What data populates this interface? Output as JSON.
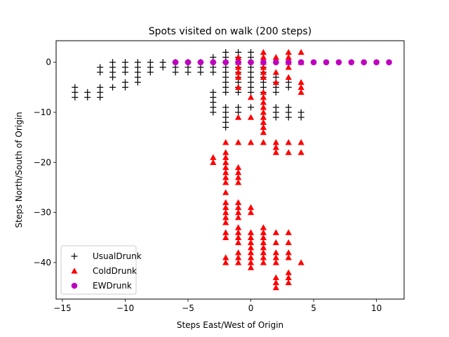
{
  "chart_data": {
    "type": "scatter",
    "title": "Spots visited on walk (200 steps)",
    "xlabel": "Steps East/West of Origin",
    "ylabel": "Steps North/South of Origin",
    "xlim": [
      -15.5,
      12.2
    ],
    "ylim": [
      -47.3,
      4.3
    ],
    "xticks": [
      -15,
      -10,
      -5,
      0,
      5,
      10
    ],
    "yticks": [
      0,
      -10,
      -20,
      -30,
      -40
    ],
    "grid": false,
    "legend": "lower-left",
    "series": [
      {
        "name": "UsualDrunk",
        "marker": "plus",
        "color": "#000000",
        "points": [
          [
            -14,
            -5
          ],
          [
            -14,
            -6
          ],
          [
            -14,
            -7
          ],
          [
            -13,
            -6
          ],
          [
            -13,
            -7
          ],
          [
            -12,
            -5
          ],
          [
            -12,
            -6
          ],
          [
            -12,
            -7
          ],
          [
            -12,
            -1
          ],
          [
            -12,
            -2
          ],
          [
            -11,
            0
          ],
          [
            -11,
            -1
          ],
          [
            -11,
            -2
          ],
          [
            -11,
            -3
          ],
          [
            -11,
            -5
          ],
          [
            -10,
            0
          ],
          [
            -10,
            -1
          ],
          [
            -10,
            -2
          ],
          [
            -10,
            -4
          ],
          [
            -10,
            -5
          ],
          [
            -9,
            0
          ],
          [
            -9,
            -1
          ],
          [
            -9,
            -2
          ],
          [
            -9,
            -3
          ],
          [
            -9,
            -4
          ],
          [
            -8,
            0
          ],
          [
            -8,
            -1
          ],
          [
            -8,
            -2
          ],
          [
            -7,
            0
          ],
          [
            -7,
            -1
          ],
          [
            -6,
            0
          ],
          [
            -6,
            -1
          ],
          [
            -6,
            -2
          ],
          [
            -5,
            0
          ],
          [
            -5,
            -1
          ],
          [
            -5,
            -2
          ],
          [
            -4,
            0
          ],
          [
            -4,
            -1
          ],
          [
            -4,
            -2
          ],
          [
            -3,
            0
          ],
          [
            -3,
            -1
          ],
          [
            -3,
            -2
          ],
          [
            -3,
            1
          ],
          [
            -3,
            -6
          ],
          [
            -3,
            -7
          ],
          [
            -3,
            -8
          ],
          [
            -3,
            -9
          ],
          [
            -3,
            -10
          ],
          [
            -2,
            2
          ],
          [
            -2,
            1
          ],
          [
            -2,
            0
          ],
          [
            -2,
            -1
          ],
          [
            -2,
            -2
          ],
          [
            -2,
            -3
          ],
          [
            -2,
            -4
          ],
          [
            -2,
            -5
          ],
          [
            -2,
            -6
          ],
          [
            -2,
            -9
          ],
          [
            -2,
            -10
          ],
          [
            -2,
            -11
          ],
          [
            -2,
            -12
          ],
          [
            -2,
            -13
          ],
          [
            -1,
            2
          ],
          [
            -1,
            1
          ],
          [
            -1,
            0
          ],
          [
            -1,
            -1
          ],
          [
            -1,
            -2
          ],
          [
            -1,
            -3
          ],
          [
            -1,
            -4
          ],
          [
            -1,
            -5
          ],
          [
            -1,
            -6
          ],
          [
            -1,
            -9
          ],
          [
            -1,
            -10
          ],
          [
            0,
            2
          ],
          [
            0,
            1
          ],
          [
            0,
            0
          ],
          [
            0,
            -1
          ],
          [
            0,
            -2
          ],
          [
            0,
            -3
          ],
          [
            0,
            -4
          ],
          [
            0,
            -5
          ],
          [
            0,
            -6
          ],
          [
            0,
            -9
          ],
          [
            1,
            -1
          ],
          [
            1,
            -2
          ],
          [
            1,
            -3
          ],
          [
            1,
            -4
          ],
          [
            1,
            -5
          ],
          [
            1,
            -6
          ],
          [
            2,
            -3
          ],
          [
            2,
            -4
          ],
          [
            2,
            -5
          ],
          [
            2,
            -6
          ],
          [
            2,
            -9
          ],
          [
            2,
            -10
          ],
          [
            2,
            -11
          ],
          [
            3,
            -4
          ],
          [
            3,
            -5
          ],
          [
            3,
            -9
          ],
          [
            3,
            -10
          ],
          [
            3,
            -11
          ],
          [
            4,
            -10
          ],
          [
            4,
            -11
          ]
        ]
      },
      {
        "name": "ColdDrunk",
        "marker": "triangle",
        "color": "#ff0000",
        "points": [
          [
            1,
            2
          ],
          [
            1,
            1
          ],
          [
            1,
            0
          ],
          [
            1,
            -1
          ],
          [
            1,
            -2
          ],
          [
            1,
            -3
          ],
          [
            2,
            1
          ],
          [
            2,
            -2
          ],
          [
            2,
            -4
          ],
          [
            3,
            2
          ],
          [
            3,
            1
          ],
          [
            3,
            0
          ],
          [
            3,
            -1
          ],
          [
            3,
            -3
          ],
          [
            4,
            2
          ],
          [
            4,
            0
          ],
          [
            4,
            -4
          ],
          [
            4,
            -5
          ],
          [
            4,
            -6
          ],
          [
            -1,
            1
          ],
          [
            -1,
            0
          ],
          [
            -1,
            -1
          ],
          [
            -1,
            -2
          ],
          [
            -1,
            -3
          ],
          [
            -1,
            -5
          ],
          [
            -1,
            -11
          ],
          [
            0,
            -7
          ],
          [
            0,
            -11
          ],
          [
            1,
            -6
          ],
          [
            1,
            -7
          ],
          [
            1,
            -8
          ],
          [
            1,
            -9
          ],
          [
            1,
            -10
          ],
          [
            1,
            -11
          ],
          [
            1,
            -12
          ],
          [
            1,
            -13
          ],
          [
            1,
            -14
          ],
          [
            1,
            -16
          ],
          [
            -1,
            -16
          ],
          [
            0,
            -16
          ],
          [
            2,
            -16
          ],
          [
            2,
            -17
          ],
          [
            2,
            -18
          ],
          [
            3,
            -16
          ],
          [
            3,
            -18
          ],
          [
            4,
            -16
          ],
          [
            4,
            -18
          ],
          [
            -3,
            -19
          ],
          [
            -3,
            -20
          ],
          [
            -2,
            -16
          ],
          [
            -2,
            -18
          ],
          [
            -2,
            -19
          ],
          [
            -2,
            -20
          ],
          [
            -2,
            -21
          ],
          [
            -2,
            -22
          ],
          [
            -2,
            -23
          ],
          [
            -2,
            -24
          ],
          [
            -2,
            -26
          ],
          [
            -2,
            -28
          ],
          [
            -2,
            -29
          ],
          [
            -2,
            -30
          ],
          [
            -2,
            -31
          ],
          [
            -2,
            -32
          ],
          [
            -2,
            -34
          ],
          [
            -2,
            -35
          ],
          [
            -2,
            -39
          ],
          [
            -2,
            -40
          ],
          [
            -1,
            -21
          ],
          [
            -1,
            -22
          ],
          [
            -1,
            -23
          ],
          [
            -1,
            -24
          ],
          [
            -1,
            -28
          ],
          [
            -1,
            -29
          ],
          [
            -1,
            -30
          ],
          [
            -1,
            -31
          ],
          [
            -1,
            -33
          ],
          [
            -1,
            -34
          ],
          [
            -1,
            -35
          ],
          [
            -1,
            -36
          ],
          [
            -1,
            -38
          ],
          [
            -1,
            -39
          ],
          [
            -1,
            -40
          ],
          [
            0,
            -29
          ],
          [
            0,
            -30
          ],
          [
            0,
            -34
          ],
          [
            0,
            -35
          ],
          [
            0,
            -36
          ],
          [
            0,
            -37
          ],
          [
            0,
            -38
          ],
          [
            0,
            -39
          ],
          [
            0,
            -40
          ],
          [
            0,
            -41
          ],
          [
            1,
            -33
          ],
          [
            1,
            -34
          ],
          [
            1,
            -35
          ],
          [
            1,
            -36
          ],
          [
            1,
            -37
          ],
          [
            1,
            -38
          ],
          [
            1,
            -39
          ],
          [
            1,
            -40
          ],
          [
            2,
            -34
          ],
          [
            2,
            -36
          ],
          [
            2,
            -38
          ],
          [
            2,
            -39
          ],
          [
            2,
            -40
          ],
          [
            2,
            -43
          ],
          [
            2,
            -44
          ],
          [
            2,
            -45
          ],
          [
            3,
            -34
          ],
          [
            3,
            -36
          ],
          [
            3,
            -38
          ],
          [
            3,
            -39
          ],
          [
            3,
            -42
          ],
          [
            3,
            -43
          ],
          [
            3,
            -44
          ],
          [
            4,
            -40
          ]
        ]
      },
      {
        "name": "EWDrunk",
        "marker": "circle",
        "color": "#bf00bf",
        "points": [
          [
            -6,
            0
          ],
          [
            -5,
            0
          ],
          [
            -4,
            0
          ],
          [
            -3,
            0
          ],
          [
            -2,
            0
          ],
          [
            -1,
            0
          ],
          [
            0,
            0
          ],
          [
            1,
            0
          ],
          [
            2,
            0
          ],
          [
            3,
            0
          ],
          [
            4,
            0
          ],
          [
            5,
            0
          ],
          [
            6,
            0
          ],
          [
            7,
            0
          ],
          [
            8,
            0
          ],
          [
            9,
            0
          ],
          [
            10,
            0
          ],
          [
            11,
            0
          ]
        ]
      }
    ]
  }
}
